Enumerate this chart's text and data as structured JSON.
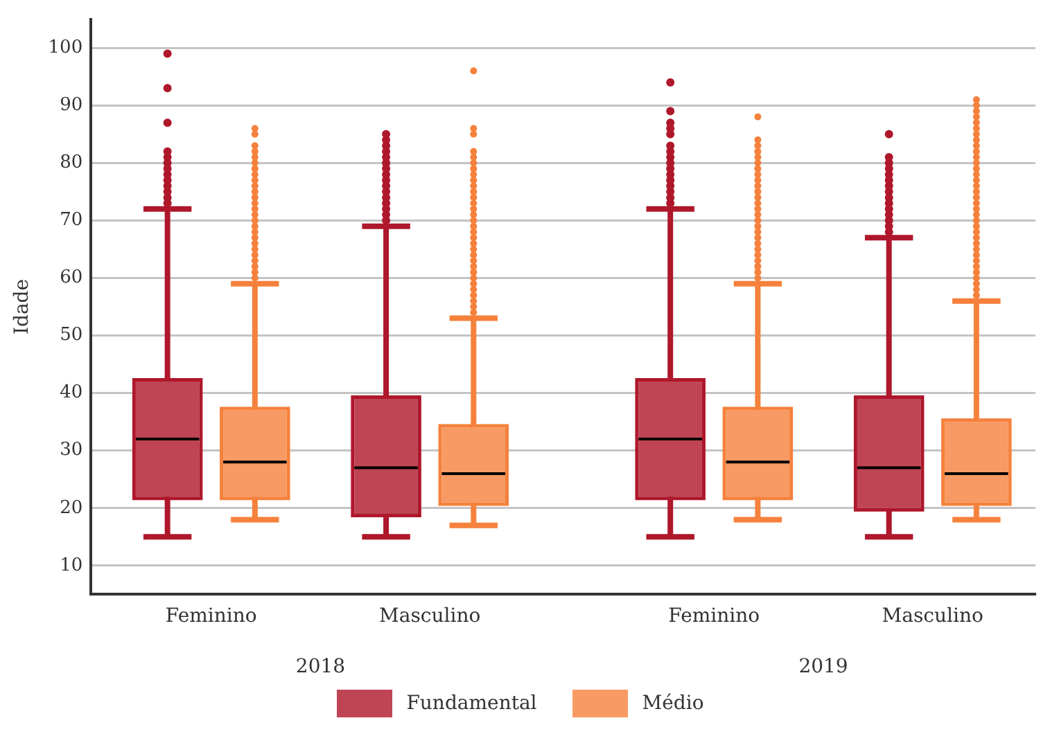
{
  "chart_data": {
    "type": "box",
    "ylabel": "Idade",
    "categories": [
      "Feminino",
      "Masculino",
      "Feminino",
      "Masculino"
    ],
    "annotations": [
      "2018",
      "2019"
    ],
    "ylim": [
      5,
      105
    ],
    "yticks": [
      10,
      20,
      30,
      40,
      50,
      60,
      70,
      80,
      90,
      100
    ],
    "grid": "y",
    "legend": "bottom",
    "series": [
      {
        "name": "Fundamental",
        "color": "#bf4555",
        "boxes": [
          {
            "low": 15,
            "q1": 22,
            "median": 32,
            "q3": 42,
            "high": 72,
            "outliers": [
              73,
              74,
              75,
              76,
              77,
              78,
              79,
              80,
              81,
              82,
              87,
              93,
              99
            ]
          },
          {
            "low": 15,
            "q1": 19,
            "median": 27,
            "q3": 39,
            "high": 69,
            "outliers": [
              70,
              71,
              72,
              73,
              74,
              75,
              76,
              77,
              78,
              79,
              80,
              81,
              82,
              83,
              84,
              85
            ]
          },
          {
            "low": 15,
            "q1": 22,
            "median": 32,
            "q3": 42,
            "high": 72,
            "outliers": [
              73,
              74,
              75,
              76,
              77,
              78,
              79,
              80,
              81,
              82,
              83,
              85,
              86,
              87,
              89,
              94
            ]
          },
          {
            "low": 15,
            "q1": 20,
            "median": 27,
            "q3": 39,
            "high": 67,
            "outliers": [
              68,
              69,
              70,
              71,
              72,
              73,
              74,
              75,
              76,
              77,
              78,
              79,
              80,
              81,
              85
            ]
          }
        ]
      },
      {
        "name": "Médio",
        "color": "#f79a63",
        "boxes": [
          {
            "low": 18,
            "q1": 22,
            "median": 28,
            "q3": 37,
            "high": 59,
            "outliers": [
              60,
              61,
              62,
              63,
              64,
              65,
              66,
              67,
              68,
              69,
              70,
              71,
              72,
              73,
              74,
              75,
              76,
              77,
              78,
              79,
              80,
              81,
              82,
              83,
              85,
              86
            ]
          },
          {
            "low": 17,
            "q1": 21,
            "median": 26,
            "q3": 34,
            "high": 53,
            "outliers": [
              54,
              55,
              56,
              57,
              58,
              59,
              60,
              61,
              62,
              63,
              64,
              65,
              66,
              67,
              68,
              69,
              70,
              71,
              72,
              73,
              74,
              75,
              76,
              77,
              78,
              79,
              80,
              81,
              82,
              85,
              86,
              96
            ]
          },
          {
            "low": 18,
            "q1": 22,
            "median": 28,
            "q3": 37,
            "high": 59,
            "outliers": [
              60,
              61,
              62,
              63,
              64,
              65,
              66,
              67,
              68,
              69,
              70,
              71,
              72,
              73,
              74,
              75,
              76,
              77,
              78,
              79,
              80,
              81,
              82,
              83,
              84,
              88
            ]
          },
          {
            "low": 18,
            "q1": 21,
            "median": 26,
            "q3": 35,
            "high": 56,
            "outliers": [
              57,
              58,
              59,
              60,
              61,
              62,
              63,
              64,
              65,
              66,
              67,
              68,
              69,
              70,
              71,
              72,
              73,
              74,
              75,
              76,
              77,
              78,
              79,
              80,
              81,
              82,
              83,
              84,
              85,
              86,
              87,
              88,
              89,
              90,
              91
            ]
          }
        ]
      }
    ]
  }
}
